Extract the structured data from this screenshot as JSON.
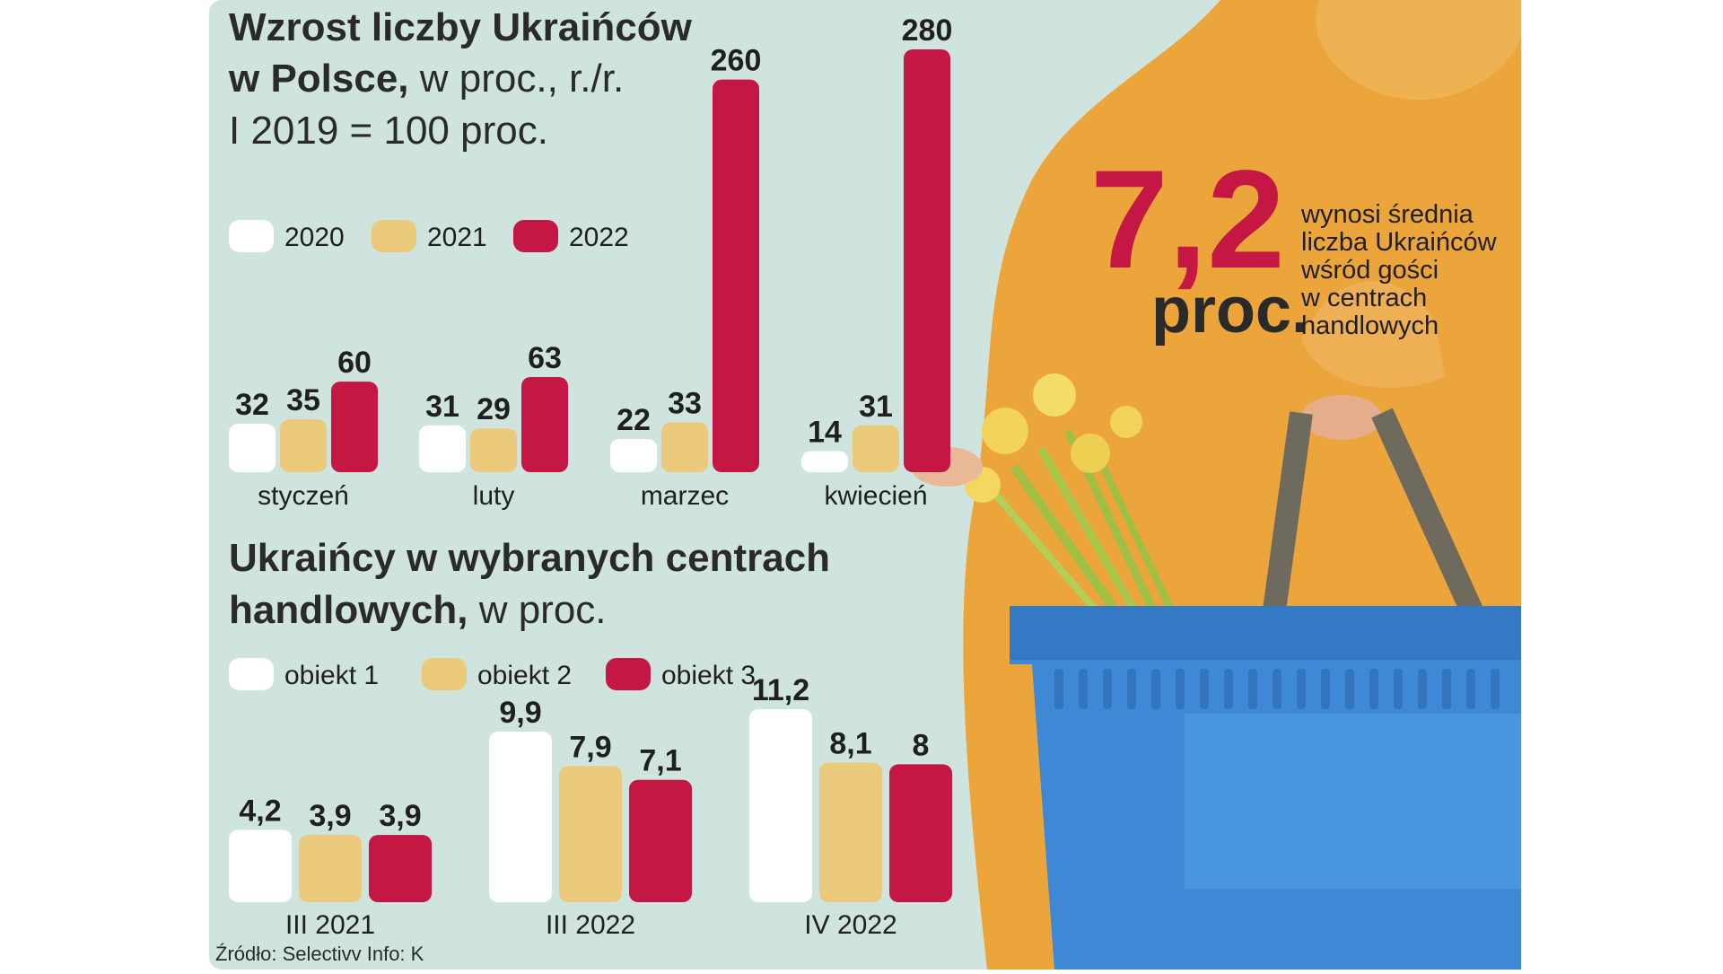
{
  "top_chart": {
    "title_line1": "Wzrost liczby Ukraińców",
    "title_line2_bold": "w Polsce,",
    "title_line2_light": " w proc., r./r.",
    "title_line3": "I 2019 = 100 proc."
  },
  "bottom_chart": {
    "title_line1": "Ukraińcy w wybranych centrach",
    "title_line2_bold": "handlowych,",
    "title_line2_light": " w proc."
  },
  "callout": {
    "number": "7,2",
    "unit": "proc.",
    "lines": [
      "wynosi średnia",
      "liczba Ukraińców",
      "wśród gości",
      "w centrach",
      "handlowych"
    ]
  },
  "source": "Źródło: Selectivv Info: K",
  "colors": {
    "background": "#cfe3df",
    "white_bar": "#ffffff",
    "gold_bar": "#ecca7c",
    "red_bar": "#c41744",
    "hoodie": "#eba53a",
    "basket": "#3f88d6",
    "accent_red": "#c41744"
  },
  "chart_data": [
    {
      "type": "bar",
      "title": "Wzrost liczby Ukraińców w Polsce, w proc., r./r.",
      "subtitle": "I 2019 = 100 proc.",
      "categories": [
        "styczeń",
        "luty",
        "marzec",
        "kwiecień"
      ],
      "series": [
        {
          "name": "2020",
          "color": "#ffffff",
          "values": [
            32,
            31,
            22,
            14
          ],
          "labels": [
            "32",
            "31",
            "22",
            "14"
          ]
        },
        {
          "name": "2021",
          "color": "#ecca7c",
          "values": [
            35,
            29,
            33,
            31
          ],
          "labels": [
            "35",
            "29",
            "33",
            "31"
          ]
        },
        {
          "name": "2022",
          "color": "#c41744",
          "values": [
            60,
            63,
            260,
            280
          ],
          "labels": [
            "60",
            "63",
            "260",
            "280"
          ]
        }
      ],
      "ylim": [
        0,
        280
      ],
      "grid": false,
      "legend": "top-left"
    },
    {
      "type": "bar",
      "title": "Ukraińcy w wybranych centrach handlowych, w proc.",
      "categories": [
        "III 2021",
        "III 2022",
        "IV 2022"
      ],
      "series": [
        {
          "name": "obiekt 1",
          "color": "#ffffff",
          "values": [
            4.2,
            9.9,
            11.2
          ],
          "labels": [
            "4,2",
            "9,9",
            "11,2"
          ]
        },
        {
          "name": "obiekt 2",
          "color": "#ecca7c",
          "values": [
            3.9,
            7.9,
            8.1
          ],
          "labels": [
            "3,9",
            "7,9",
            "8,1"
          ]
        },
        {
          "name": "obiekt 3",
          "color": "#c41744",
          "values": [
            3.9,
            7.1,
            8
          ],
          "labels": [
            "3,9",
            "7,1",
            "8"
          ]
        }
      ],
      "ylim": [
        0,
        11.2
      ],
      "grid": false,
      "legend": "top-left"
    }
  ]
}
